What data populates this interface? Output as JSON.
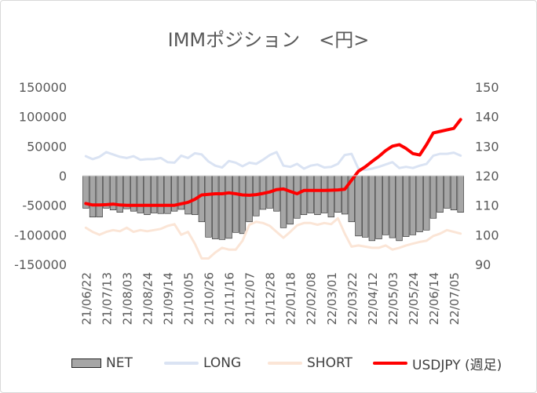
{
  "chart_data": {
    "type": "bar+line",
    "title": "IMMポジション　<円>",
    "categories": [
      "21/06/22",
      "21/06/29",
      "21/07/06",
      "21/07/13",
      "21/07/20",
      "21/07/27",
      "21/08/03",
      "21/08/10",
      "21/08/17",
      "21/08/24",
      "21/08/31",
      "21/09/07",
      "21/09/14",
      "21/09/21",
      "21/09/28",
      "21/10/05",
      "21/10/12",
      "21/10/19",
      "21/10/26",
      "21/11/02",
      "21/11/09",
      "21/11/16",
      "21/11/23",
      "21/11/30",
      "21/12/07",
      "21/12/14",
      "21/12/21",
      "21/12/28",
      "22/01/04",
      "22/01/11",
      "22/01/18",
      "22/01/25",
      "22/02/01",
      "22/02/08",
      "22/02/15",
      "22/02/22",
      "22/03/01",
      "22/03/08",
      "22/03/15",
      "22/03/22",
      "22/03/29",
      "22/04/05",
      "22/04/12",
      "22/04/19",
      "22/04/26",
      "22/05/03",
      "22/05/10",
      "22/05/17",
      "22/05/24",
      "22/05/31",
      "22/06/07",
      "22/06/14",
      "22/06/21",
      "22/06/28",
      "22/07/05",
      "22/07/12"
    ],
    "tick_labels": [
      "21/06/22",
      "21/07/13",
      "21/08/03",
      "21/08/24",
      "21/09/14",
      "21/10/05",
      "21/10/26",
      "21/11/16",
      "21/12/07",
      "21/12/28",
      "22/01/18",
      "22/02/08",
      "22/03/01",
      "22/03/22",
      "22/04/12",
      "22/05/03",
      "22/05/24",
      "22/06/14",
      "22/07/05"
    ],
    "y_left": {
      "min": -150000,
      "max": 150000,
      "ticks": [
        "150000",
        "100000",
        "50000",
        "0",
        "-50000",
        "-100000",
        "-150000"
      ]
    },
    "y_right": {
      "min": 90,
      "max": 150,
      "ticks": [
        "150",
        "140",
        "130",
        "120",
        "110",
        "100",
        "90"
      ]
    },
    "series": [
      {
        "name": "NET",
        "kind": "bar",
        "axis": "left",
        "color": "#a6a6a6",
        "values": [
          -55000,
          -70000,
          -70000,
          -55000,
          -58000,
          -62000,
          -56000,
          -60000,
          -63000,
          -66000,
          -63000,
          -64000,
          -64000,
          -60000,
          -57000,
          -65000,
          -66000,
          -78000,
          -104000,
          -107000,
          -108000,
          -106000,
          -96000,
          -98000,
          -78000,
          -68000,
          -57000,
          -55000,
          -60000,
          -88000,
          -82000,
          -72000,
          -66000,
          -63000,
          -66000,
          -63000,
          -70000,
          -62000,
          -65000,
          -78000,
          -102000,
          -104000,
          -110000,
          -107000,
          -100000,
          -105000,
          -110000,
          -103000,
          -100000,
          -95000,
          -92000,
          -72000,
          -62000,
          -55000,
          -58000,
          -62000
        ]
      },
      {
        "name": "LONG",
        "kind": "line",
        "axis": "left",
        "color": "#dae3f3",
        "values": [
          33000,
          28000,
          32000,
          40000,
          36000,
          32000,
          30000,
          33000,
          27000,
          28000,
          28000,
          30000,
          23000,
          22000,
          34000,
          30000,
          38000,
          36000,
          24000,
          17000,
          14000,
          25000,
          22000,
          16000,
          22000,
          20000,
          27000,
          35000,
          40000,
          17000,
          15000,
          20000,
          12000,
          17000,
          19000,
          14000,
          15000,
          20000,
          35000,
          37000,
          12000,
          10000,
          12000,
          15000,
          19000,
          23000,
          13000,
          15000,
          13000,
          17000,
          20000,
          34000,
          37000,
          37000,
          39000,
          34000
        ]
      },
      {
        "name": "SHORT",
        "kind": "line",
        "axis": "left",
        "color": "#fbe5d6",
        "values": [
          -88000,
          -95000,
          -100000,
          -95000,
          -92000,
          -94000,
          -88000,
          -95000,
          -92000,
          -94000,
          -92000,
          -90000,
          -85000,
          -82000,
          -100000,
          -95000,
          -115000,
          -140000,
          -140000,
          -130000,
          -122000,
          -125000,
          -125000,
          -110000,
          -83000,
          -78000,
          -80000,
          -85000,
          -95000,
          -105000,
          -95000,
          -84000,
          -80000,
          -80000,
          -83000,
          -80000,
          -82000,
          -72000,
          -98000,
          -120000,
          -118000,
          -120000,
          -122000,
          -122000,
          -118000,
          -125000,
          -122000,
          -118000,
          -115000,
          -112000,
          -110000,
          -102000,
          -98000,
          -92000,
          -95000,
          -98000
        ]
      },
      {
        "name": "USDJPY (週足)",
        "kind": "line",
        "axis": "right",
        "color": "#ff0000",
        "values": [
          110.6,
          110.1,
          110.1,
          110.2,
          110.4,
          110.1,
          110.0,
          110.0,
          110.0,
          110.0,
          110.0,
          110.0,
          110.0,
          110.0,
          110.5,
          111.0,
          112.0,
          113.5,
          113.7,
          113.9,
          113.9,
          114.2,
          113.9,
          113.5,
          113.4,
          113.6,
          114.0,
          114.5,
          115.3,
          115.5,
          114.7,
          113.9,
          115.0,
          115.0,
          115.0,
          115.0,
          115.1,
          115.2,
          115.4,
          118.5,
          121.5,
          123.0,
          124.8,
          126.5,
          128.5,
          130.0,
          130.5,
          129.2,
          127.5,
          127.0,
          130.5,
          134.5,
          135.0,
          135.5,
          136.0,
          139.0
        ]
      }
    ],
    "grid": false,
    "legend_position": "bottom"
  },
  "legend": [
    {
      "label": "NET",
      "color": "#a6a6a6",
      "kind": "bar"
    },
    {
      "label": "LONG",
      "color": "#dae3f3",
      "kind": "line"
    },
    {
      "label": "SHORT",
      "color": "#fbe5d6",
      "kind": "line"
    },
    {
      "label": "USDJPY (週足)",
      "color": "#ff0000",
      "kind": "line"
    }
  ]
}
